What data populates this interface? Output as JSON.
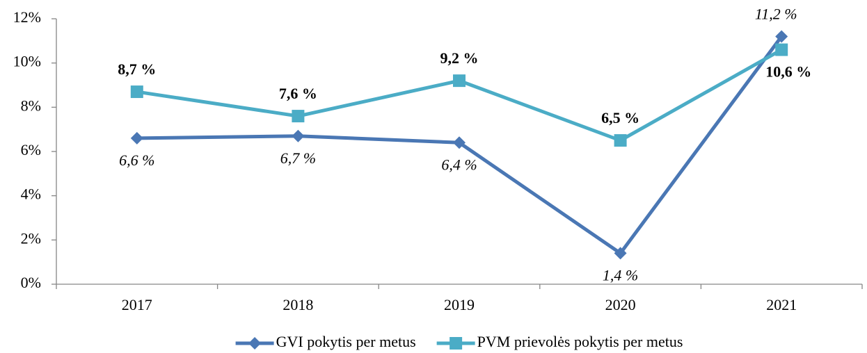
{
  "chart_data": {
    "type": "line",
    "categories": [
      "2017",
      "2018",
      "2019",
      "2020",
      "2021"
    ],
    "series": [
      {
        "name": "GVI pokytis per metus",
        "color": "#4a77b4",
        "marker": "diamond",
        "values": [
          6.6,
          6.7,
          6.4,
          1.4,
          11.2
        ],
        "value_labels": [
          "6,6 %",
          "6,7 %",
          "6,4 %",
          "1,4 %",
          "11,2 %"
        ]
      },
      {
        "name": "PVM prievolės pokytis per metus",
        "color": "#4bacc6",
        "marker": "square",
        "values": [
          8.7,
          7.6,
          9.2,
          6.5,
          10.6
        ],
        "value_labels": [
          "8,7 %",
          "7,6 %",
          "9,2 %",
          "6,5 %",
          "10,6 %"
        ]
      }
    ],
    "ylim": [
      0,
      12
    ],
    "yticks": [
      {
        "value": 0,
        "label": "0%"
      },
      {
        "value": 2,
        "label": "2%"
      },
      {
        "value": 4,
        "label": "4%"
      },
      {
        "value": 6,
        "label": "6%"
      },
      {
        "value": 8,
        "label": "8%"
      },
      {
        "value": 10,
        "label": "10%"
      },
      {
        "value": 12,
        "label": "12%"
      }
    ],
    "legend": "bottom"
  }
}
